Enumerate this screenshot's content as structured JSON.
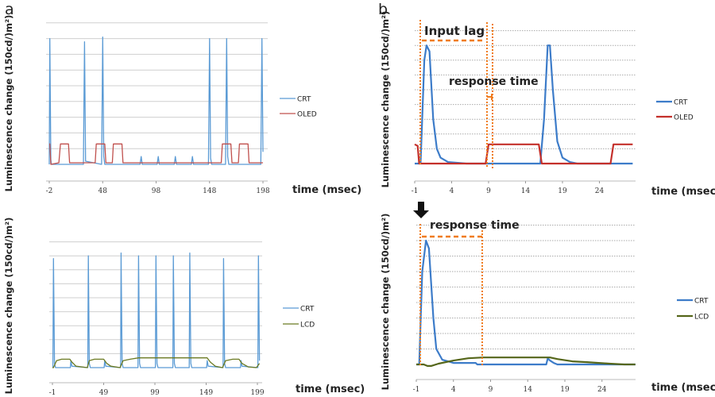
{
  "panel_labels": {
    "a": "a",
    "b": "b"
  },
  "colors": {
    "crt": "#5b9bd5",
    "crt_b": "#3d7cc9",
    "oled": "#c0504d",
    "oled_b": "#c4302b",
    "lcd": "#6b7a22",
    "lcd_b": "#55661a",
    "annotation": "#f07c1e",
    "grid": "#cfcfcf"
  },
  "chart_data": [
    {
      "id": "a-top",
      "type": "line",
      "panel": "a",
      "xlabel": "time (msec)",
      "ylabel": "Luminescence change  (150cd/)m²)",
      "xticks": [
        -2,
        48,
        98,
        148,
        198
      ],
      "xlim": [
        -2,
        200
      ],
      "ylim": [
        -1,
        9
      ],
      "grid": true,
      "legend": "right",
      "series": [
        {
          "name": "CRT",
          "points": [
            [
              -2,
              0
            ],
            [
              -1.5,
              8
            ],
            [
              -0.5,
              0.3
            ],
            [
              0,
              0
            ],
            [
              30,
              0
            ],
            [
              31,
              7.8
            ],
            [
              32,
              0.2
            ],
            [
              47,
              0
            ],
            [
              48,
              8.1
            ],
            [
              49,
              0.5
            ],
            [
              50,
              0
            ],
            [
              83,
              0
            ],
            [
              84,
              0.5
            ],
            [
              85,
              0
            ],
            [
              99,
              0
            ],
            [
              100,
              0.5
            ],
            [
              101,
              0
            ],
            [
              115,
              0
            ],
            [
              116,
              0.5
            ],
            [
              117,
              0
            ],
            [
              131,
              0
            ],
            [
              132,
              0.5
            ],
            [
              133,
              0
            ],
            [
              147,
              0
            ],
            [
              148,
              8
            ],
            [
              149,
              0.4
            ],
            [
              150,
              0
            ],
            [
              163,
              0
            ],
            [
              164,
              8
            ],
            [
              165,
              0.5
            ],
            [
              166,
              0
            ],
            [
              196,
              0
            ],
            [
              197,
              8
            ],
            [
              198,
              0.8
            ]
          ]
        },
        {
          "name": "OLED",
          "points": [
            [
              -2,
              1.3
            ],
            [
              -1.5,
              1.3
            ],
            [
              -0.5,
              0
            ],
            [
              7,
              0.1
            ],
            [
              8.5,
              1.3
            ],
            [
              16,
              1.3
            ],
            [
              17,
              0.1
            ],
            [
              41,
              0.1
            ],
            [
              42,
              1.3
            ],
            [
              50,
              1.3
            ],
            [
              51,
              0.1
            ],
            [
              57,
              0.1
            ],
            [
              58,
              1.3
            ],
            [
              66,
              1.3
            ],
            [
              67,
              0.1
            ],
            [
              159,
              0.1
            ],
            [
              160,
              1.3
            ],
            [
              168,
              1.3
            ],
            [
              169,
              0.1
            ],
            [
              175,
              0.1
            ],
            [
              176,
              1.3
            ],
            [
              184,
              1.3
            ],
            [
              185,
              0.1
            ],
            [
              198,
              0.1
            ]
          ]
        }
      ]
    },
    {
      "id": "a-bottom",
      "type": "line",
      "panel": "a",
      "xlabel": "time (msec)",
      "ylabel": "Luminescence change  (150cd/)m²)",
      "xticks": [
        -1,
        49,
        99,
        149,
        199
      ],
      "xlim": [
        -1,
        201
      ],
      "ylim": [
        -1,
        9
      ],
      "grid": true,
      "legend": "right",
      "series": [
        {
          "name": "CRT",
          "points": [
            [
              -1,
              0
            ],
            [
              -0.5,
              0
            ],
            [
              0,
              7.8
            ],
            [
              1,
              0.3
            ],
            [
              2,
              0
            ],
            [
              16.5,
              0
            ],
            [
              17,
              0.5
            ],
            [
              18,
              0.1
            ],
            [
              33.5,
              0
            ],
            [
              34,
              8
            ],
            [
              35,
              0.3
            ],
            [
              36,
              0
            ],
            [
              49.5,
              0
            ],
            [
              50,
              0.5
            ],
            [
              51,
              0.1
            ],
            [
              65.5,
              0
            ],
            [
              66,
              8.2
            ],
            [
              67,
              0.3
            ],
            [
              68,
              0
            ],
            [
              82.5,
              0
            ],
            [
              83,
              8
            ],
            [
              84,
              0.3
            ],
            [
              85,
              0
            ],
            [
              99.5,
              0
            ],
            [
              100,
              8
            ],
            [
              101,
              0.3
            ],
            [
              102,
              0
            ],
            [
              116.5,
              0
            ],
            [
              117,
              8
            ],
            [
              118,
              0.3
            ],
            [
              119,
              0
            ],
            [
              132.5,
              0
            ],
            [
              133,
              8.2
            ],
            [
              134,
              0.3
            ],
            [
              135,
              0
            ],
            [
              149.5,
              0
            ],
            [
              150,
              0.5
            ],
            [
              151,
              0.1
            ],
            [
              165.5,
              0
            ],
            [
              166,
              7.8
            ],
            [
              167,
              0.3
            ],
            [
              168,
              0
            ],
            [
              182.5,
              0
            ],
            [
              183,
              0.5
            ],
            [
              184,
              0.1
            ],
            [
              199.5,
              0
            ],
            [
              200,
              8
            ],
            [
              201,
              0.5
            ]
          ]
        },
        {
          "name": "LCD",
          "points": [
            [
              -1,
              0
            ],
            [
              0,
              0
            ],
            [
              3,
              0.5
            ],
            [
              8,
              0.6
            ],
            [
              16,
              0.6
            ],
            [
              18,
              0.4
            ],
            [
              22,
              0.1
            ],
            [
              33,
              0
            ],
            [
              35,
              0.5
            ],
            [
              40,
              0.6
            ],
            [
              49,
              0.6
            ],
            [
              52,
              0.3
            ],
            [
              56,
              0.1
            ],
            [
              65,
              0
            ],
            [
              68,
              0.5
            ],
            [
              75,
              0.6
            ],
            [
              83,
              0.7
            ],
            [
              150,
              0.7
            ],
            [
              153,
              0.4
            ],
            [
              158,
              0.1
            ],
            [
              165,
              0
            ],
            [
              168,
              0.5
            ],
            [
              175,
              0.6
            ],
            [
              181,
              0.6
            ],
            [
              184,
              0.3
            ],
            [
              190,
              0.05
            ],
            [
              198,
              0
            ],
            [
              201,
              0.3
            ]
          ]
        }
      ]
    },
    {
      "id": "b-top",
      "type": "line",
      "panel": "b",
      "xlabel": "time (msec)",
      "ylabel": "Luminescence change  (150cd/)m²)",
      "xticks": [
        -1,
        4,
        9,
        14,
        19,
        24
      ],
      "xlim": [
        -1,
        28.5
      ],
      "ylim": [
        -1,
        9
      ],
      "grid": true,
      "legend": "right",
      "annotations": {
        "input_lag": "Input lag",
        "response_time": "response time"
      },
      "series": [
        {
          "name": "CRT",
          "points": [
            [
              -1,
              0
            ],
            [
              -0.2,
              0
            ],
            [
              0.3,
              7
            ],
            [
              0.6,
              8
            ],
            [
              1.0,
              7.6
            ],
            [
              1.5,
              3
            ],
            [
              2,
              1
            ],
            [
              2.5,
              0.4
            ],
            [
              3.5,
              0.1
            ],
            [
              6,
              0
            ],
            [
              16,
              0
            ],
            [
              16.5,
              3
            ],
            [
              17,
              8
            ],
            [
              17.3,
              8
            ],
            [
              17.7,
              5
            ],
            [
              18.3,
              1.5
            ],
            [
              19,
              0.4
            ],
            [
              20,
              0.1
            ],
            [
              21,
              0
            ],
            [
              28.5,
              0
            ]
          ]
        },
        {
          "name": "OLED",
          "points": [
            [
              -1,
              1.3
            ],
            [
              -0.6,
              1.2
            ],
            [
              -0.4,
              0
            ],
            [
              0,
              0
            ],
            [
              8.6,
              0
            ],
            [
              9,
              1.3
            ],
            [
              15.8,
              1.3
            ],
            [
              16.2,
              0
            ],
            [
              25.5,
              0
            ],
            [
              25.9,
              1.3
            ],
            [
              28.5,
              1.3
            ]
          ]
        }
      ]
    },
    {
      "id": "b-bottom",
      "type": "line",
      "panel": "b",
      "xlabel": "time (msec)",
      "ylabel": "Luminescence change  (150cd/)m²)",
      "xticks": [
        -1,
        4,
        9,
        14,
        19,
        24
      ],
      "xlim": [
        -1,
        28.5
      ],
      "ylim": [
        -1,
        9
      ],
      "grid": true,
      "legend": "right",
      "annotations": {
        "response_time": "response time"
      },
      "series": [
        {
          "name": "CRT",
          "points": [
            [
              -1,
              0
            ],
            [
              -0.6,
              0
            ],
            [
              -0.2,
              6
            ],
            [
              0.3,
              8
            ],
            [
              0.7,
              7.5
            ],
            [
              1.3,
              3
            ],
            [
              1.7,
              1
            ],
            [
              2.5,
              0.3
            ],
            [
              4,
              0.1
            ],
            [
              7,
              0.1
            ],
            [
              7.2,
              0
            ],
            [
              16.5,
              0
            ],
            [
              16.7,
              0.4
            ],
            [
              17,
              0.25
            ],
            [
              17.5,
              0.1
            ],
            [
              18,
              0
            ],
            [
              28.5,
              0
            ]
          ]
        },
        {
          "name": "LCD",
          "points": [
            [
              -1,
              0
            ],
            [
              0,
              0
            ],
            [
              0.5,
              -0.1
            ],
            [
              1,
              -0.1
            ],
            [
              2,
              0.05
            ],
            [
              4,
              0.25
            ],
            [
              6,
              0.4
            ],
            [
              8,
              0.45
            ],
            [
              17,
              0.45
            ],
            [
              18,
              0.35
            ],
            [
              20,
              0.2
            ],
            [
              22,
              0.15
            ],
            [
              25,
              0.05
            ],
            [
              27,
              0
            ],
            [
              28.5,
              0
            ]
          ]
        }
      ]
    }
  ]
}
